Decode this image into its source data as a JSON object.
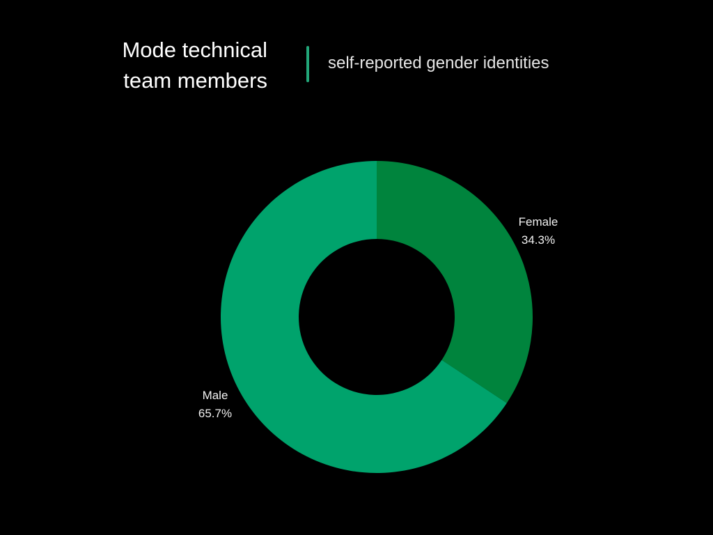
{
  "header": {
    "title_line1": "Mode technical",
    "title_line2": "team members",
    "subtitle": "self-reported gender identities"
  },
  "colors": {
    "background": "#000000",
    "divider": "#22a679",
    "Female": "#00843d",
    "Male": "#00a36c"
  },
  "chart_data": {
    "type": "pie",
    "donut": true,
    "title": "Mode technical team members",
    "subtitle": "self-reported gender identities",
    "legend": "none",
    "slices": [
      {
        "label": "Female",
        "value": 34.3,
        "display": "34.3%"
      },
      {
        "label": "Male",
        "value": 65.7,
        "display": "65.7%"
      }
    ]
  }
}
